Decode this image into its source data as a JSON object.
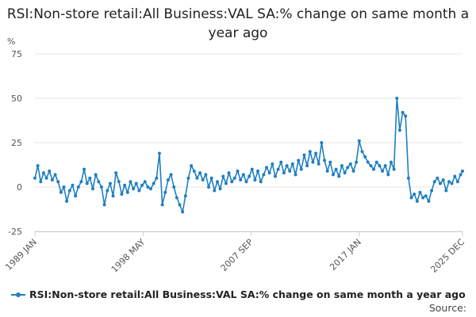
{
  "chart_data": {
    "type": "line",
    "title": "RSI:Non-store retail:All Business:VAL SA:% change on same month a year ago",
    "ylabel": "%",
    "xlabel": "",
    "ylim": [
      -25,
      75
    ],
    "yticks": [
      -25,
      0,
      25,
      50,
      75
    ],
    "xlim": [
      "1989-01",
      "2025-12"
    ],
    "xticks": [
      {
        "label": "1989 JAN",
        "date": "1989-01"
      },
      {
        "label": "1998 MAY",
        "date": "1998-05"
      },
      {
        "label": "2007 SEP",
        "date": "2007-09"
      },
      {
        "label": "2017 JAN",
        "date": "2017-01"
      },
      {
        "label": "2025 DEC",
        "date": "2025-12"
      }
    ],
    "grid": true,
    "legend_position": "bottom-left",
    "series": [
      {
        "name": "RSI:Non-store retail:All Business:VAL SA:% change on same month a year ago",
        "color": "#1f7fc0",
        "points": [
          [
            "1989-01",
            5
          ],
          [
            "1989-04",
            12
          ],
          [
            "1989-07",
            3
          ],
          [
            "1989-10",
            8
          ],
          [
            "1990-01",
            5
          ],
          [
            "1990-04",
            9
          ],
          [
            "1990-07",
            4
          ],
          [
            "1990-10",
            7
          ],
          [
            "1991-01",
            3
          ],
          [
            "1991-04",
            -3
          ],
          [
            "1991-07",
            0
          ],
          [
            "1991-10",
            -8
          ],
          [
            "1992-01",
            -2
          ],
          [
            "1992-04",
            1
          ],
          [
            "1992-07",
            -5
          ],
          [
            "1992-10",
            0
          ],
          [
            "1993-01",
            3
          ],
          [
            "1993-04",
            10
          ],
          [
            "1993-07",
            2
          ],
          [
            "1993-10",
            5
          ],
          [
            "1994-01",
            -1
          ],
          [
            "1994-04",
            7
          ],
          [
            "1994-07",
            3
          ],
          [
            "1994-10",
            0
          ],
          [
            "1995-01",
            -10
          ],
          [
            "1995-04",
            -2
          ],
          [
            "1995-07",
            2
          ],
          [
            "1995-10",
            -5
          ],
          [
            "1996-01",
            8
          ],
          [
            "1996-04",
            3
          ],
          [
            "1996-07",
            -4
          ],
          [
            "1996-10",
            1
          ],
          [
            "1997-01",
            -3
          ],
          [
            "1997-04",
            3
          ],
          [
            "1997-07",
            -1
          ],
          [
            "1997-10",
            2
          ],
          [
            "1998-01",
            -2
          ],
          [
            "1998-04",
            1
          ],
          [
            "1998-07",
            3
          ],
          [
            "1998-10",
            0
          ],
          [
            "1999-01",
            -1
          ],
          [
            "1999-04",
            2
          ],
          [
            "1999-07",
            5
          ],
          [
            "1999-10",
            19
          ],
          [
            "2000-01",
            -10
          ],
          [
            "2000-04",
            -3
          ],
          [
            "2000-07",
            4
          ],
          [
            "2000-10",
            7
          ],
          [
            "2001-01",
            0
          ],
          [
            "2001-04",
            -6
          ],
          [
            "2001-07",
            -10
          ],
          [
            "2001-10",
            -14
          ],
          [
            "2002-01",
            -5
          ],
          [
            "2002-04",
            5
          ],
          [
            "2002-07",
            12
          ],
          [
            "2002-10",
            9
          ],
          [
            "2003-01",
            5
          ],
          [
            "2003-04",
            8
          ],
          [
            "2003-07",
            4
          ],
          [
            "2003-10",
            7
          ],
          [
            "2004-01",
            0
          ],
          [
            "2004-04",
            5
          ],
          [
            "2004-07",
            -2
          ],
          [
            "2004-10",
            3
          ],
          [
            "2005-01",
            -1
          ],
          [
            "2005-04",
            6
          ],
          [
            "2005-07",
            2
          ],
          [
            "2005-10",
            8
          ],
          [
            "2006-01",
            3
          ],
          [
            "2006-04",
            5
          ],
          [
            "2006-07",
            9
          ],
          [
            "2006-10",
            4
          ],
          [
            "2007-01",
            7
          ],
          [
            "2007-04",
            3
          ],
          [
            "2007-07",
            6
          ],
          [
            "2007-10",
            10
          ],
          [
            "2008-01",
            4
          ],
          [
            "2008-04",
            9
          ],
          [
            "2008-07",
            3
          ],
          [
            "2008-10",
            7
          ],
          [
            "2009-01",
            11
          ],
          [
            "2009-04",
            8
          ],
          [
            "2009-07",
            13
          ],
          [
            "2009-10",
            6
          ],
          [
            "2010-01",
            10
          ],
          [
            "2010-04",
            14
          ],
          [
            "2010-07",
            8
          ],
          [
            "2010-10",
            12
          ],
          [
            "2011-01",
            9
          ],
          [
            "2011-04",
            13
          ],
          [
            "2011-07",
            7
          ],
          [
            "2011-10",
            15
          ],
          [
            "2012-01",
            10
          ],
          [
            "2012-04",
            18
          ],
          [
            "2012-07",
            12
          ],
          [
            "2012-10",
            20
          ],
          [
            "2013-01",
            14
          ],
          [
            "2013-04",
            19
          ],
          [
            "2013-07",
            13
          ],
          [
            "2013-10",
            25
          ],
          [
            "2014-01",
            15
          ],
          [
            "2014-04",
            9
          ],
          [
            "2014-07",
            14
          ],
          [
            "2014-10",
            7
          ],
          [
            "2015-01",
            10
          ],
          [
            "2015-04",
            6
          ],
          [
            "2015-07",
            12
          ],
          [
            "2015-10",
            8
          ],
          [
            "2016-01",
            11
          ],
          [
            "2016-04",
            13
          ],
          [
            "2016-07",
            9
          ],
          [
            "2016-10",
            14
          ],
          [
            "2017-01",
            26
          ],
          [
            "2017-04",
            20
          ],
          [
            "2017-07",
            17
          ],
          [
            "2017-10",
            14
          ],
          [
            "2018-01",
            12
          ],
          [
            "2018-04",
            10
          ],
          [
            "2018-07",
            14
          ],
          [
            "2018-10",
            12
          ],
          [
            "2019-01",
            9
          ],
          [
            "2019-04",
            12
          ],
          [
            "2019-07",
            7
          ],
          [
            "2019-10",
            14
          ],
          [
            "2020-01",
            10
          ],
          [
            "2020-04",
            50
          ],
          [
            "2020-07",
            32
          ],
          [
            "2020-10",
            42
          ],
          [
            "2021-01",
            40
          ],
          [
            "2021-04",
            5
          ],
          [
            "2021-07",
            -6
          ],
          [
            "2021-10",
            -4
          ],
          [
            "2022-01",
            -8
          ],
          [
            "2022-04",
            -3
          ],
          [
            "2022-07",
            -6
          ],
          [
            "2022-10",
            -5
          ],
          [
            "2023-01",
            -8
          ],
          [
            "2023-04",
            -2
          ],
          [
            "2023-07",
            3
          ],
          [
            "2023-10",
            5
          ],
          [
            "2024-01",
            2
          ],
          [
            "2024-04",
            4
          ],
          [
            "2024-07",
            -2
          ],
          [
            "2024-10",
            3
          ],
          [
            "2025-01",
            2
          ],
          [
            "2025-04",
            6
          ],
          [
            "2025-07",
            3
          ],
          [
            "2025-10",
            7
          ],
          [
            "2025-12",
            9
          ]
        ]
      }
    ]
  },
  "source_label": "Source:"
}
